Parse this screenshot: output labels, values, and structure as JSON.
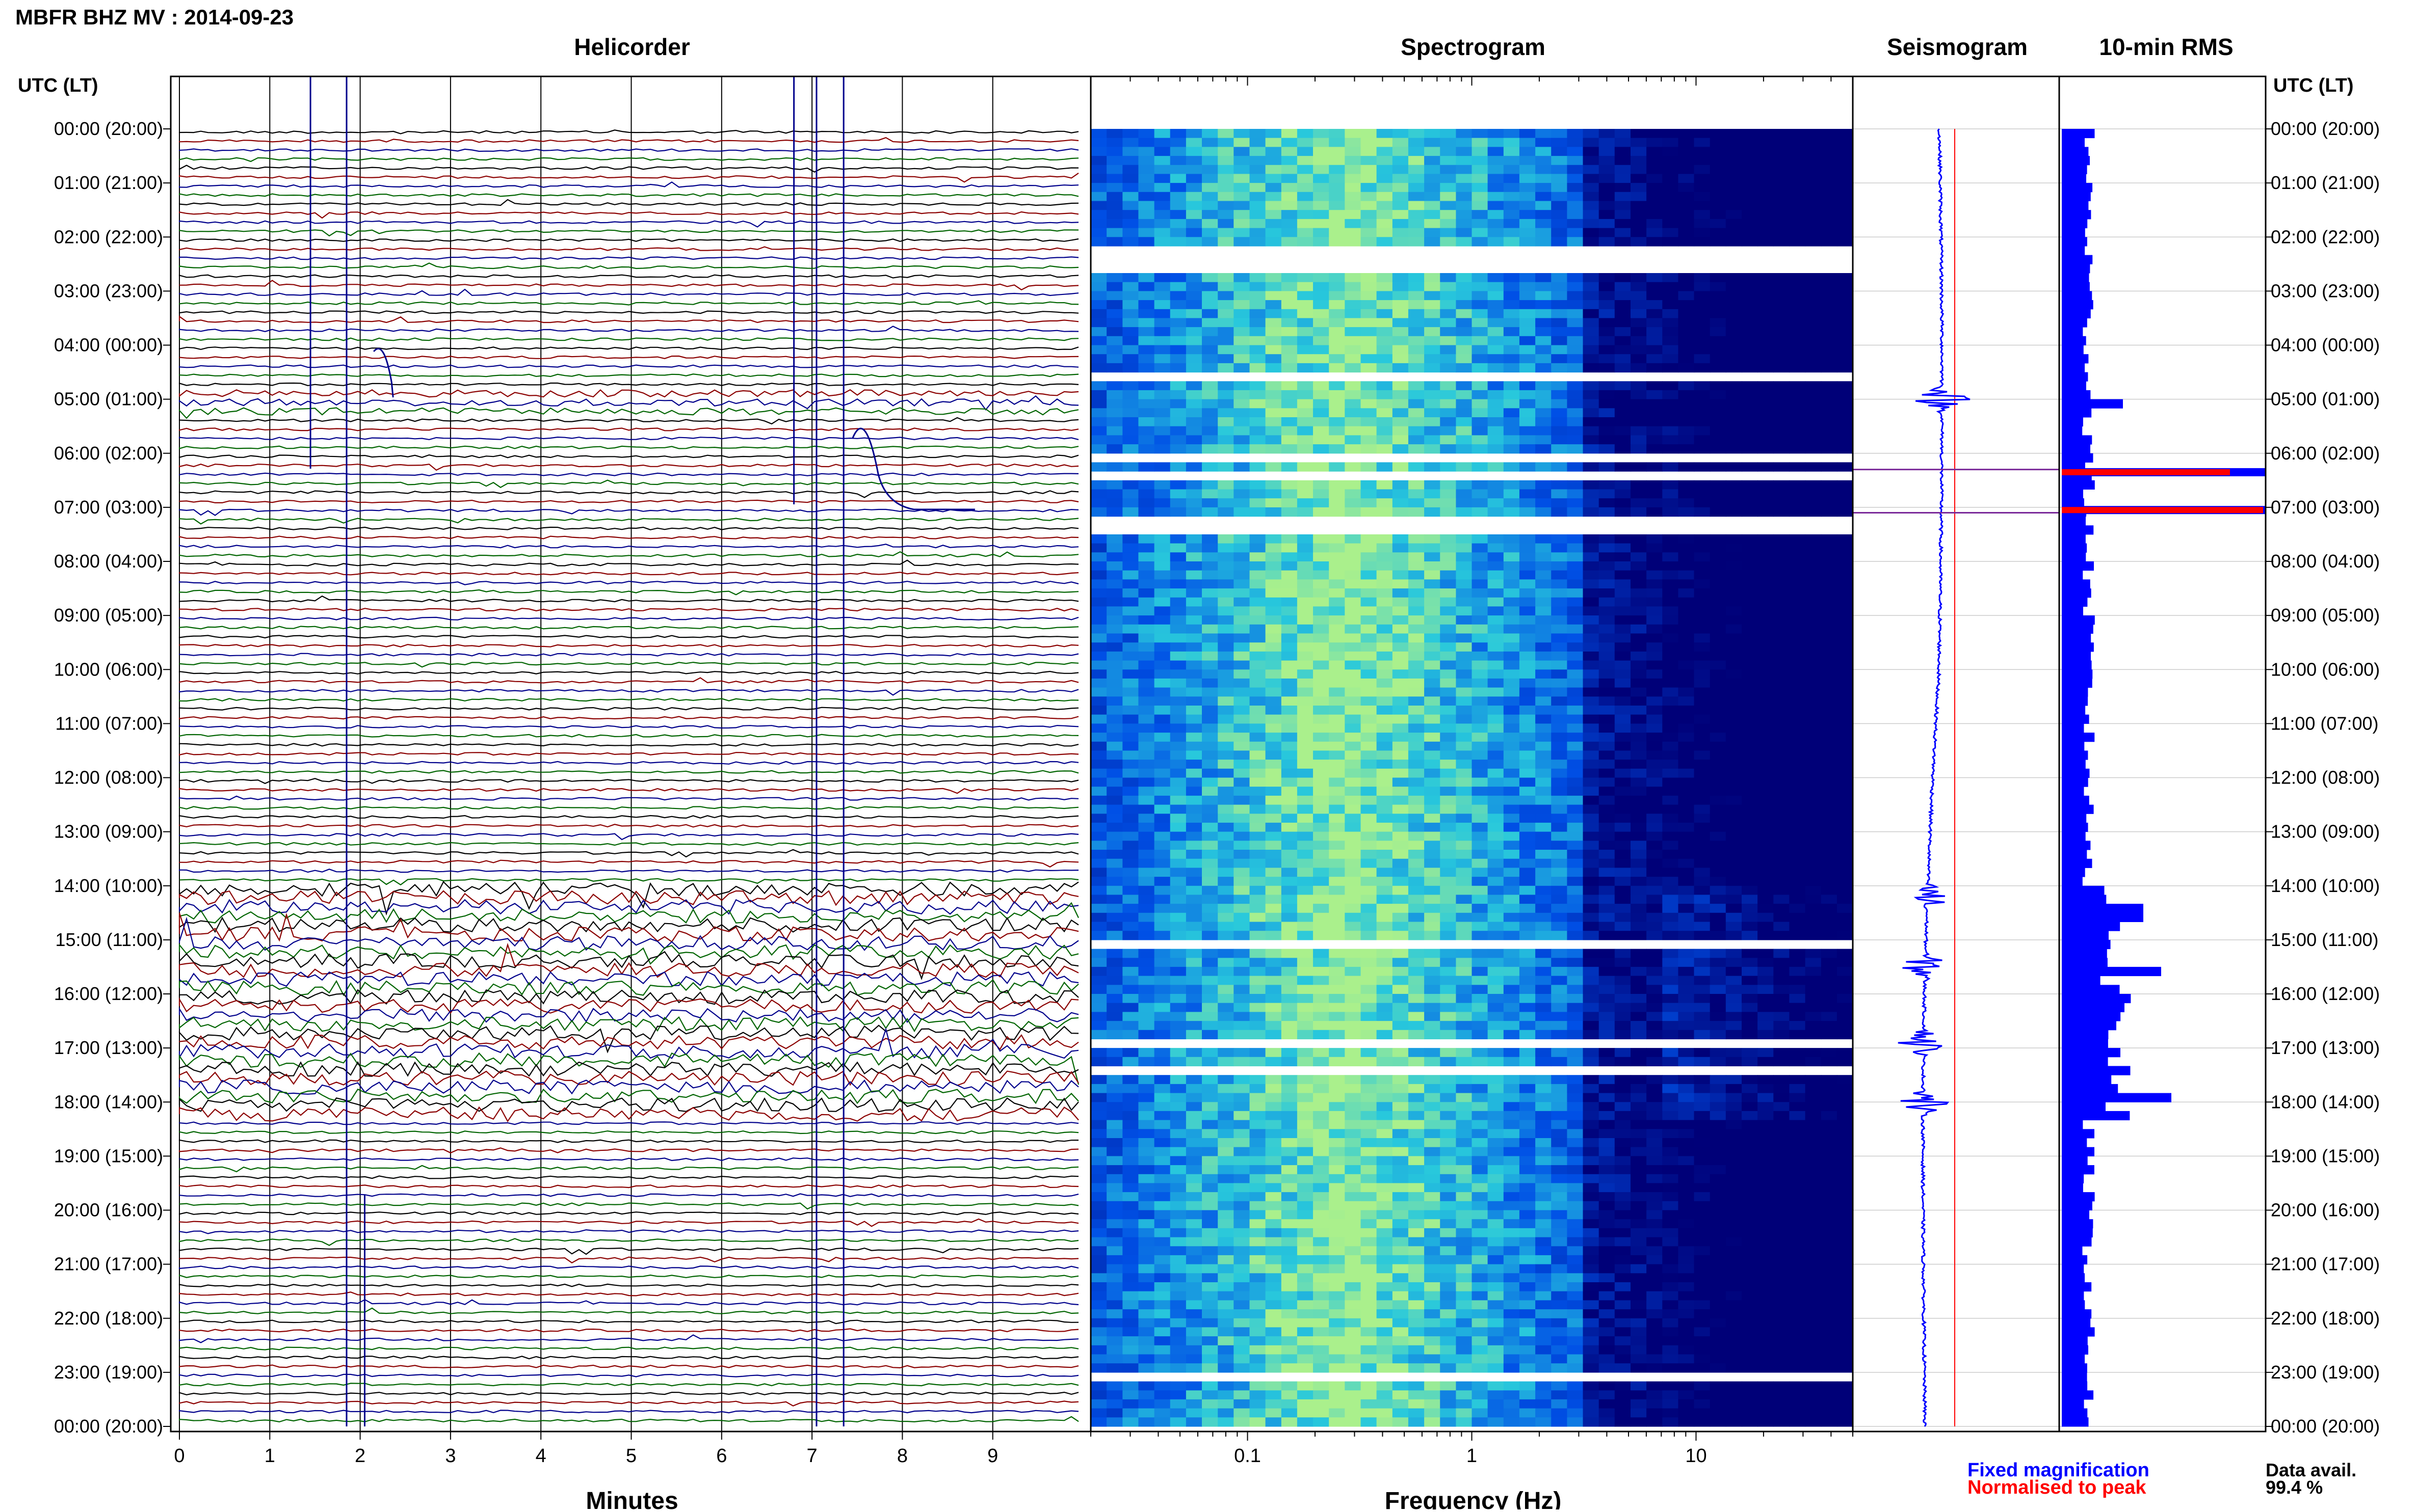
{
  "header": {
    "title": "MBFR BHZ MV : 2014-09-23",
    "utc_label_left": "UTC (LT)",
    "utc_label_right": "UTC (LT)"
  },
  "panels": {
    "helicorder_title": "Helicorder",
    "spectrogram_title": "Spectrogram",
    "seismogram_title": "Seismogram",
    "rms_title": "10-min RMS"
  },
  "axes": {
    "minutes_label": "Minutes",
    "frequency_label": "Frequency (Hz)"
  },
  "legend": {
    "fixed": "Fixed magnification",
    "normalised": "Normalised to peak",
    "data_avail_label": "Data avail.",
    "data_avail_value": "99.4 %"
  },
  "colors": {
    "trace_black": "#000000",
    "trace_red": "#8b0000",
    "trace_blue": "#00008b",
    "trace_green": "#006400",
    "rms_blue": "#0000ff",
    "rms_red": "#ff0000",
    "spectro_dark": "#00008b",
    "spectro_light": "#00ffff"
  },
  "chart_data": [
    {
      "type": "line",
      "name": "helicorder",
      "title": "Helicorder",
      "xlabel": "Minutes",
      "x_ticks": [
        0,
        1,
        2,
        3,
        4,
        5,
        6,
        7,
        8,
        9
      ],
      "xlim": [
        0,
        10
      ],
      "row_minutes": 10,
      "time_labels": [
        "00:00 (20:00)",
        "01:00 (21:00)",
        "02:00 (22:00)",
        "03:00 (23:00)",
        "04:00 (00:00)",
        "05:00 (01:00)",
        "06:00 (02:00)",
        "07:00 (03:00)",
        "08:00 (04:00)",
        "09:00 (05:00)",
        "10:00 (06:00)",
        "11:00 (07:00)",
        "12:00 (08:00)",
        "13:00 (09:00)",
        "14:00 (10:00)",
        "15:00 (11:00)",
        "16:00 (12:00)",
        "17:00 (13:00)",
        "18:00 (14:00)",
        "19:00 (15:00)",
        "20:00 (16:00)",
        "21:00 (17:00)",
        "22:00 (18:00)",
        "23:00 (19:00)",
        "00:00 (20:00)"
      ],
      "row_colors_cycle": [
        "black",
        "red",
        "blue",
        "green"
      ]
    },
    {
      "type": "heatmap",
      "name": "spectrogram",
      "title": "Spectrogram",
      "xlabel": "Frequency (Hz)",
      "x_scale": "log",
      "x_tick_labels": [
        "0.1",
        "1",
        "10"
      ],
      "xlim": [
        0.02,
        50
      ]
    },
    {
      "type": "line",
      "name": "seismogram",
      "title": "Seismogram",
      "events_hours": [
        5.0,
        14.2,
        15.5,
        16.9,
        18.0
      ]
    },
    {
      "type": "bar",
      "name": "rms",
      "title": "10-min RMS",
      "series": [
        {
          "name": "Fixed magnification",
          "color": "#0000ff"
        },
        {
          "name": "Normalised to peak",
          "color": "#ff0000"
        }
      ],
      "peaks_hours": [
        5.0,
        6.3,
        7.1,
        14.3,
        15.5,
        16.9,
        17.8
      ]
    }
  ]
}
